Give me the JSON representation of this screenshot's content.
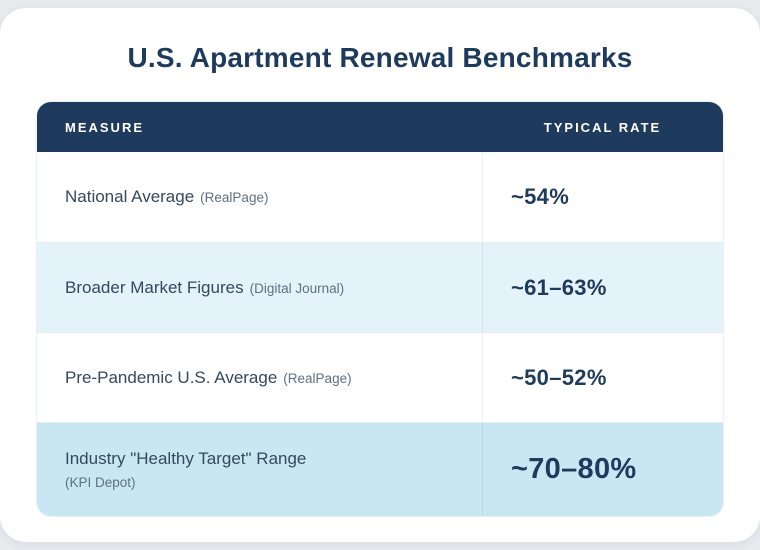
{
  "page": {
    "title": "U.S. Apartment Renewal Benchmarks"
  },
  "table": {
    "columns": [
      {
        "label": "MEASURE"
      },
      {
        "label": "TYPICAL RATE"
      }
    ],
    "rows": [
      {
        "measure": "National Average",
        "source": "(RealPage)",
        "rate": "~54%"
      },
      {
        "measure": "Broader Market Figures",
        "source": "(Digital Journal)",
        "rate": "~61–63%"
      },
      {
        "measure": "Pre-Pandemic U.S. Average",
        "source": "(RealPage)",
        "rate": "~50–52%"
      },
      {
        "measure": "Industry \"Healthy Target\" Range",
        "source": "(KPI Depot)",
        "rate": "~70–80%"
      }
    ]
  },
  "colors": {
    "navy": "#1e3a5c",
    "header_bg": "#1e3a5c",
    "row_tint_light": "#e4f2f9",
    "row_tint_strong": "#c9e7f3",
    "measure_text": "#34495e",
    "source_text": "#5d7183",
    "page_bg": "#e8eaee",
    "card_bg": "#ffffff"
  },
  "chart_data": {
    "type": "table",
    "title": "U.S. Apartment Renewal Benchmarks",
    "columns": [
      "Measure",
      "Typical Rate"
    ],
    "rows": [
      [
        "National Average (RealPage)",
        "~54%"
      ],
      [
        "Broader Market Figures (Digital Journal)",
        "~61–63%"
      ],
      [
        "Pre-Pandemic U.S. Average (RealPage)",
        "~50–52%"
      ],
      [
        "Industry \"Healthy Target\" Range (KPI Depot)",
        "~70–80%"
      ]
    ]
  }
}
